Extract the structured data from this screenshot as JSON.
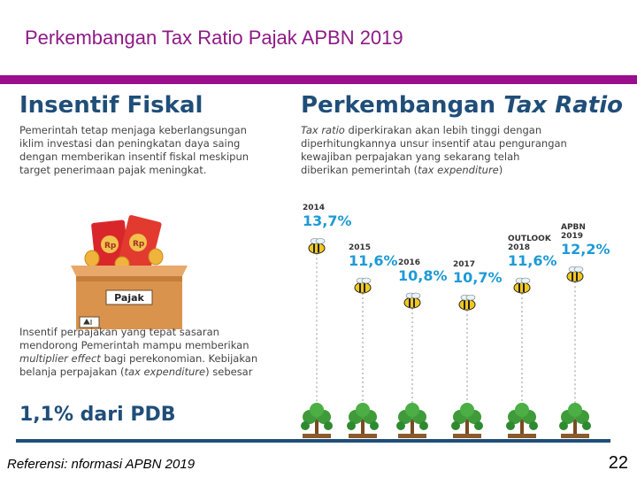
{
  "slide": {
    "title": "Perkembangan Tax Ratio Pajak APBN 2019",
    "footer_ref": "Referensi: nformasi APBN 2019",
    "page_number": "22",
    "accent_color": "#9b0e8c"
  },
  "left": {
    "heading": "Insentif Fiskal",
    "body_lines": [
      "Pemerintah tetap menjaga keberlangsungan",
      "iklim investasi dan peningkatan daya saing",
      "dengan memberikan insentif fiskal meskipun",
      "target penerimaan pajak meningkat."
    ],
    "box_label": "Pajak",
    "envelope_label": "Rp",
    "body2": {
      "line1": "Insentif perpajakan yang tepat sasaran",
      "line2": "mendorong Pemerintah mampu memberikan",
      "line3_italic": "multiplier effect",
      "line3_rest": " bagi perekonomian. Kebijakan",
      "line4_start": "belanja perpajakan (",
      "line4_italic": "tax expenditure",
      "line4_end": ") sebesar"
    },
    "pdb": "1,1% dari PDB"
  },
  "right": {
    "heading_plain": "Perkembangan ",
    "heading_italic": "Tax Ratio",
    "body": {
      "line1_italic": "Tax ratio",
      "line1_rest": " diperkirakan akan lebih tinggi dengan",
      "line2": "diperhitungkannya unsur insentif atau pengurangan",
      "line3": "kewajiban perpajakan yang sekarang telah",
      "line4_start": "diberikan pemerintah (",
      "line4_italic": "tax expenditure",
      "line4_end": ")"
    }
  },
  "chart_data": {
    "type": "line",
    "title": "",
    "xlabel": "",
    "ylabel": "",
    "categories": [
      "2014",
      "2015",
      "2016",
      "2017",
      "OUTLOOK 2018",
      "APBN 2019"
    ],
    "values": [
      13.7,
      11.6,
      10.8,
      10.7,
      11.6,
      12.2
    ],
    "value_labels": [
      "13,7%",
      "11,6%",
      "10,8%",
      "10,7%",
      "11,6%",
      "12,2%"
    ],
    "category_lines": [
      [
        "2014"
      ],
      [
        "2015"
      ],
      [
        "2016"
      ],
      [
        "2017"
      ],
      [
        "OUTLOOK",
        "2018"
      ],
      [
        "APBN",
        "2019"
      ]
    ],
    "ylim": [
      10,
      14
    ],
    "value_color": "#1e9ad6",
    "grid": false
  }
}
